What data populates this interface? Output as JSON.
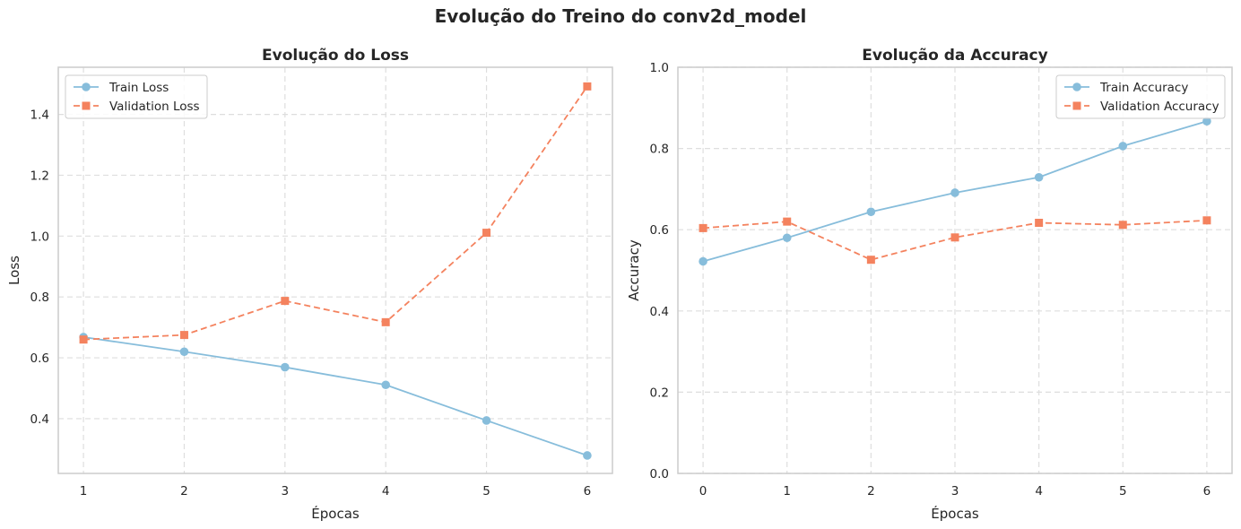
{
  "figure": {
    "title": "Evolução do Treino do conv2d_model"
  },
  "colors": {
    "train": "#87BDDB",
    "validation": "#F4825E",
    "grid": "#DEDEDE",
    "spine": "#CCCCCC",
    "text": "#262626"
  },
  "chart_data": [
    {
      "type": "line",
      "title": "Evolução do Loss",
      "xlabel": "Épocas",
      "ylabel": "Loss",
      "x": [
        1,
        2,
        3,
        4,
        5,
        6
      ],
      "xticks": [
        "1",
        "2",
        "3",
        "4",
        "5",
        "6"
      ],
      "xlim": [
        0.75,
        6.25
      ],
      "yticks": [
        "0.4",
        "0.6",
        "0.8",
        "1.0",
        "1.2",
        "1.4"
      ],
      "ylim": [
        0.22,
        1.555
      ],
      "grid": true,
      "legend_position": "upper left",
      "series": [
        {
          "name": "Train Loss",
          "values": [
            0.668,
            0.62,
            0.569,
            0.511,
            0.394,
            0.279
          ],
          "style": "solid",
          "marker": "circle",
          "color_key": "train"
        },
        {
          "name": "Validation Loss",
          "values": [
            0.66,
            0.675,
            0.787,
            0.717,
            1.011,
            1.492
          ],
          "style": "dashed",
          "marker": "square",
          "color_key": "validation"
        }
      ]
    },
    {
      "type": "line",
      "title": "Evolução da Accuracy",
      "xlabel": "Épocas",
      "ylabel": "Accuracy",
      "x": [
        0,
        1,
        2,
        3,
        4,
        5,
        6
      ],
      "xticks": [
        "0",
        "1",
        "2",
        "3",
        "4",
        "5",
        "6"
      ],
      "xlim": [
        -0.3,
        6.3
      ],
      "yticks": [
        "0.0",
        "0.2",
        "0.4",
        "0.6",
        "0.8",
        "1.0"
      ],
      "ylim": [
        0,
        1
      ],
      "grid": true,
      "legend_position": "upper right",
      "series": [
        {
          "name": "Train Accuracy",
          "values": [
            0.522,
            0.58,
            0.644,
            0.691,
            0.729,
            0.806,
            0.867
          ],
          "style": "solid",
          "marker": "circle",
          "color_key": "train"
        },
        {
          "name": "Validation Accuracy",
          "values": [
            0.604,
            0.62,
            0.526,
            0.581,
            0.617,
            0.612,
            0.623
          ],
          "style": "dashed",
          "marker": "square",
          "color_key": "validation"
        }
      ]
    }
  ]
}
